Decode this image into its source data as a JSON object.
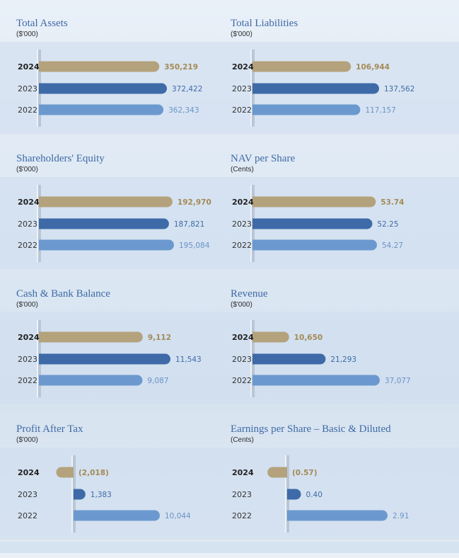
{
  "colors": {
    "bar_2024": "#b4a27c",
    "bar_2023": "#3e6aa8",
    "bar_2022": "#6b99cf",
    "label_2024": "#a48a55",
    "label_2023": "#3f6aa6",
    "label_2022": "#6b93c6",
    "title": "#3f6aa6"
  },
  "chart_data": [
    {
      "type": "bar",
      "title": "Total Assets",
      "unit": "($'000)",
      "categories": [
        "2024",
        "2023",
        "2022"
      ],
      "values": [
        350219,
        372422,
        362343
      ],
      "value_labels": [
        "350,219",
        "372,422",
        "362,343"
      ],
      "orientation": "horizontal"
    },
    {
      "type": "bar",
      "title": "Total Liabilities",
      "unit": "($'000)",
      "categories": [
        "2024",
        "2023",
        "2022"
      ],
      "values": [
        106944,
        137562,
        117157
      ],
      "value_labels": [
        "106,944",
        "137,562",
        "117,157"
      ],
      "orientation": "horizontal"
    },
    {
      "type": "bar",
      "title": "Shareholders' Equity",
      "unit": "($'000)",
      "categories": [
        "2024",
        "2023",
        "2022"
      ],
      "values": [
        192970,
        187821,
        195084
      ],
      "value_labels": [
        "192,970",
        "187,821",
        "195,084"
      ],
      "orientation": "horizontal"
    },
    {
      "type": "bar",
      "title": "NAV per Share",
      "unit": "(Cents)",
      "categories": [
        "2024",
        "2023",
        "2022"
      ],
      "values": [
        53.74,
        52.25,
        54.27
      ],
      "value_labels": [
        "53.74",
        "52.25",
        "54.27"
      ],
      "orientation": "horizontal"
    },
    {
      "type": "bar",
      "title": "Cash & Bank Balance",
      "unit": "($'000)",
      "categories": [
        "2024",
        "2023",
        "2022"
      ],
      "values": [
        9112,
        11543,
        9087
      ],
      "value_labels": [
        "9,112",
        "11,543",
        "9,087"
      ],
      "orientation": "horizontal"
    },
    {
      "type": "bar",
      "title": "Revenue",
      "unit": "($'000)",
      "categories": [
        "2024",
        "2023",
        "2022"
      ],
      "values": [
        10650,
        21293,
        37077
      ],
      "value_labels": [
        "10,650",
        "21,293",
        "37,077"
      ],
      "orientation": "horizontal"
    },
    {
      "type": "bar",
      "title": "Profit After Tax",
      "unit": "($'000)",
      "categories": [
        "2024",
        "2023",
        "2022"
      ],
      "values": [
        -2018,
        1383,
        10044
      ],
      "value_labels": [
        "(2,018)",
        "1,383",
        "10,044"
      ],
      "orientation": "horizontal"
    },
    {
      "type": "bar",
      "title": "Earnings per Share – Basic & Diluted",
      "unit": "(Cents)",
      "categories": [
        "2024",
        "2023",
        "2022"
      ],
      "values": [
        -0.57,
        0.4,
        2.91
      ],
      "value_labels": [
        "(0.57)",
        "0.40",
        "2.91"
      ],
      "orientation": "horizontal"
    }
  ]
}
